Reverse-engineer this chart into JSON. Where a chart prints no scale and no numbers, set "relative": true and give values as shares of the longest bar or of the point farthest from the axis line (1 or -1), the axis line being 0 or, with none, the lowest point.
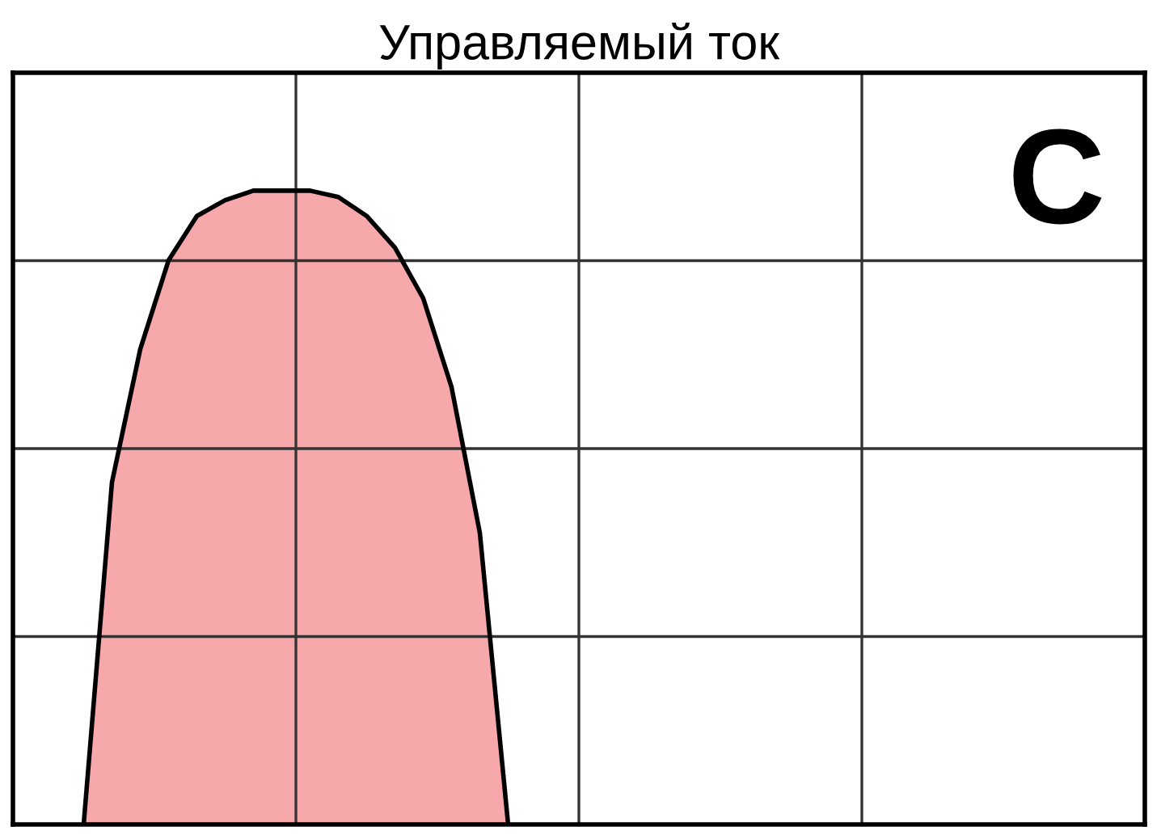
{
  "chart_data": {
    "type": "area",
    "title": "Управляемый ток",
    "relative": true,
    "categories": [
      null,
      null,
      null,
      null,
      null,
      null,
      null,
      null,
      null,
      null,
      null,
      null,
      null,
      null,
      null,
      null,
      null,
      null,
      null,
      null,
      null,
      null,
      null,
      null,
      null,
      null,
      null,
      null,
      null,
      null,
      null,
      null,
      null,
      null,
      null,
      null,
      null,
      null,
      null,
      null
    ],
    "series": [
      {
        "color": "#f7a8ab",
        "values": [
          null,
          null,
          0,
          0.54,
          0.75,
          0.89,
          0.96,
          0.985,
          1,
          1,
          1,
          0.99,
          0.96,
          0.91,
          0.83,
          0.69,
          0.46,
          0,
          null,
          null,
          null,
          null,
          null,
          null,
          null,
          null,
          null,
          null,
          null,
          null,
          null,
          null,
          null,
          null,
          null,
          null,
          null,
          null,
          null,
          null
        ]
      }
    ],
    "grid": true,
    "annotations": [
      "C"
    ]
  }
}
